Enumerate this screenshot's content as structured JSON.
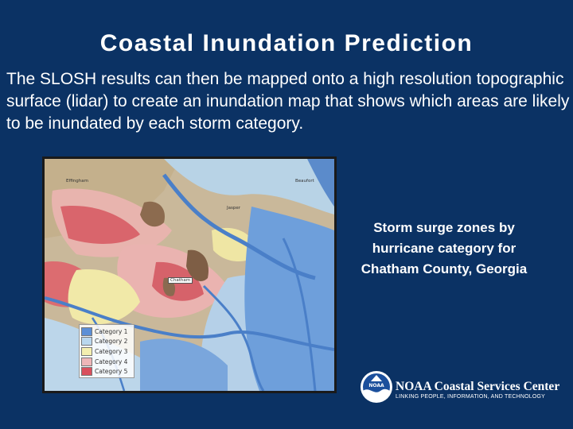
{
  "slide": {
    "title": "Coastal Inundation Prediction",
    "body": "The SLOSH results can then be mapped onto a high resolution topographic surface (lidar) to create an inundation map that shows which areas are likely to be inundated by each storm category.",
    "caption_lines": [
      "Storm surge zones by",
      "hurricane category for",
      "Chatham County, Georgia"
    ]
  },
  "map": {
    "towns": [
      "Effingham",
      "Beaufort",
      "Jasper",
      "Chatham"
    ],
    "legend": [
      {
        "label": "Category 1",
        "color": "#5c8fd6"
      },
      {
        "label": "Category 2",
        "color": "#b9d7ee"
      },
      {
        "label": "Category 3",
        "color": "#f4efb0"
      },
      {
        "label": "Category 4",
        "color": "#eeb6b8"
      },
      {
        "label": "Category 5",
        "color": "#d94f5c"
      }
    ]
  },
  "footer": {
    "logo_text": "NOAA",
    "org_name": "NOAA Coastal Services Center",
    "tagline": "LINKING PEOPLE, INFORMATION, AND TECHNOLOGY"
  },
  "colors": {
    "background": "#0b3264",
    "text": "#ffffff"
  }
}
